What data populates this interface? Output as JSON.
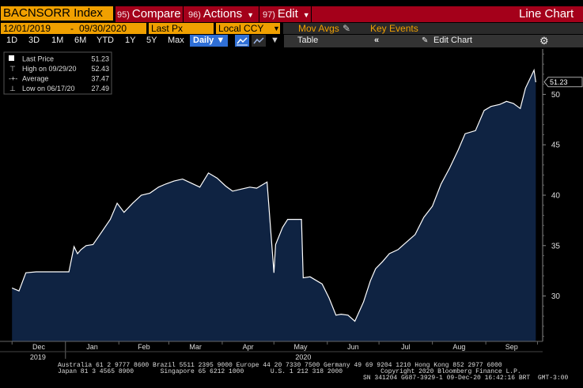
{
  "toolbar": {
    "ticker": "BACNSORR Index",
    "compare_num": "95)",
    "compare": "Compare",
    "actions_num": "96)",
    "actions": "Actions",
    "edit_num": "97)",
    "edit": "Edit",
    "chart_type": "Line Chart"
  },
  "row2": {
    "start_date": "12/01/2019",
    "end_date": "09/30/2020",
    "field": "Last Px",
    "currency": "Local CCY",
    "mov_avgs": "Mov Avgs",
    "key_events": "Key Events"
  },
  "row3": {
    "ranges": [
      "1D",
      "3D",
      "1M",
      "6M",
      "YTD",
      "1Y",
      "5Y",
      "Max"
    ],
    "frequency": "Daily",
    "table": "Table",
    "edit_chart": "Edit Chart"
  },
  "legend": {
    "last_label": "Last Price",
    "last_value": "51.23",
    "high_label": "High on 09/29/20",
    "high_value": "52.43",
    "avg_label": "Average",
    "avg_value": "37.47",
    "low_label": "Low on 06/17/20",
    "low_value": "27.49"
  },
  "colors": {
    "orange": "#f0a000",
    "red_bar": "#a4001a",
    "area_fill": "#0f2342",
    "line": "#ffffff"
  },
  "chart_data": {
    "type": "area",
    "title": "BACNSORR Index",
    "ylim": [
      25.5,
      54.5
    ],
    "yticks": [
      30,
      35,
      40,
      45,
      50
    ],
    "last_value_label": "51.23",
    "month_labels": [
      "Dec",
      "Jan",
      "Feb",
      "Mar",
      "Apr",
      "May",
      "Jun",
      "Jul",
      "Aug",
      "Sep"
    ],
    "year_labels": [
      "2019",
      "2020"
    ],
    "x": [
      "2019-12-01",
      "2019-12-05",
      "2019-12-09",
      "2019-12-15",
      "2019-12-20",
      "2019-12-31",
      "2020-01-03",
      "2020-01-06",
      "2020-01-08",
      "2020-01-10",
      "2020-01-13",
      "2020-01-17",
      "2020-01-21",
      "2020-01-27",
      "2020-01-31",
      "2020-02-04",
      "2020-02-09",
      "2020-02-14",
      "2020-02-19",
      "2020-02-24",
      "2020-02-28",
      "2020-03-04",
      "2020-03-09",
      "2020-03-14",
      "2020-03-19",
      "2020-03-24",
      "2020-03-29",
      "2020-04-03",
      "2020-04-07",
      "2020-04-12",
      "2020-04-17",
      "2020-04-21",
      "2020-04-27",
      "2020-05-01",
      "2020-05-02",
      "2020-05-06",
      "2020-05-09",
      "2020-05-13",
      "2020-05-17",
      "2020-05-18",
      "2020-05-22",
      "2020-05-29",
      "2020-06-02",
      "2020-06-06",
      "2020-06-09",
      "2020-06-13",
      "2020-06-17",
      "2020-06-22",
      "2020-06-26",
      "2020-06-29",
      "2020-07-03",
      "2020-07-07",
      "2020-07-12",
      "2020-07-16",
      "2020-07-22",
      "2020-07-27",
      "2020-08-01",
      "2020-08-06",
      "2020-08-11",
      "2020-08-16",
      "2020-08-20",
      "2020-08-26",
      "2020-08-31",
      "2020-09-04",
      "2020-09-09",
      "2020-09-13",
      "2020-09-17",
      "2020-09-21",
      "2020-09-24",
      "2020-09-29",
      "2020-09-30"
    ],
    "y": [
      30.8,
      30.5,
      32.3,
      32.4,
      32.4,
      32.4,
      32.4,
      34.9,
      34.2,
      34.6,
      35.0,
      35.1,
      36.1,
      37.6,
      39.2,
      38.3,
      39.2,
      40.0,
      40.2,
      40.8,
      41.1,
      41.4,
      41.6,
      41.2,
      40.8,
      42.2,
      41.7,
      40.9,
      40.4,
      40.6,
      40.8,
      40.7,
      41.3,
      32.3,
      35.1,
      36.8,
      37.6,
      37.6,
      37.6,
      31.8,
      31.9,
      31.2,
      29.8,
      28.1,
      28.2,
      28.1,
      27.5,
      29.4,
      31.5,
      32.7,
      33.4,
      34.2,
      34.6,
      35.2,
      36.1,
      37.8,
      38.9,
      41.1,
      42.7,
      44.5,
      46.1,
      46.4,
      48.4,
      48.8,
      49.0,
      49.3,
      49.1,
      48.6,
      50.6,
      52.4,
      51.2
    ]
  },
  "footer": {
    "line1": "Australia 61 2 9777 8600 Brazil 5511 2395 9000 Europe 44 20 7330 7500 Germany 49 69 9204 1210 Hong Kong 852 2977 6000",
    "line2": "Japan 81 3 4565 8900       Singapore 65 6212 1000       U.S. 1 212 318 2000          Copyright 2020 Bloomberg Finance L.P.",
    "line3": "SN 341204 G687-3929-1 09-Dec-20 16:42:16 BRT  GMT-3:00"
  }
}
